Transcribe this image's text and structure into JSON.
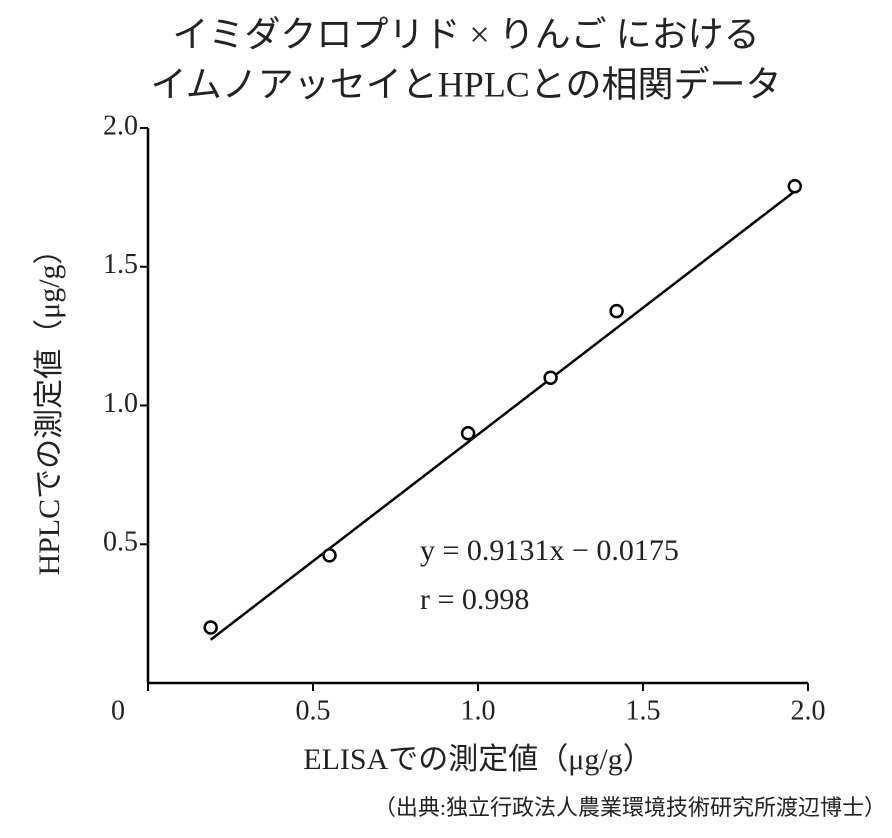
{
  "chart_data": {
    "type": "scatter",
    "title": [
      "イミダクロプリド × りんご における",
      "イムノアッセイとHPLCとの相関データ"
    ],
    "x_label": "ELISAでの測定値（μg/g）",
    "y_label": "HPLCでの測定値（μg/g）",
    "source": "（出典:独立行政法人農業環境技術研究所渡辺博士）",
    "x": [
      0.19,
      0.55,
      0.97,
      1.22,
      1.42,
      1.96
    ],
    "values": [
      0.2,
      0.46,
      0.9,
      1.1,
      1.34,
      1.79
    ],
    "color": "#000000",
    "trendline": {
      "slope": 0.9131,
      "intercept": -0.0175
    },
    "annotations": [
      "y = 0.9131x − 0.0175",
      "r = 0.998"
    ],
    "xlim": [
      0,
      2.0
    ],
    "ylim": [
      0,
      2.0
    ],
    "xticks": [
      0,
      {
        "value": 0.5,
        "label": "0.5"
      },
      {
        "value": 1.0,
        "label": "1.0"
      },
      {
        "value": 1.5,
        "label": "1.5"
      },
      {
        "value": 2.0,
        "label": "2.0"
      }
    ],
    "yticks": [
      {
        "value": 0.5,
        "label": "0.5"
      },
      {
        "value": 1.0,
        "label": "1.0"
      },
      {
        "value": 1.5,
        "label": "1.5"
      },
      {
        "value": 2.0,
        "label": "2.0"
      }
    ],
    "grid": false
  }
}
